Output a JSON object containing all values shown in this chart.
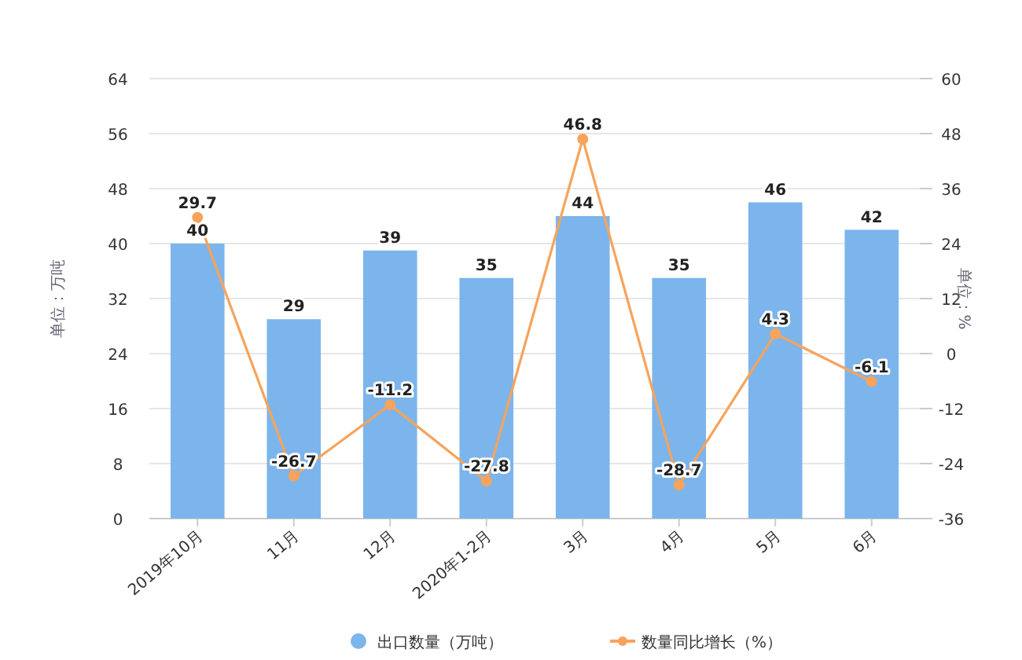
{
  "chart_data": {
    "type": "bar",
    "categories": [
      "2019年10月",
      "11月",
      "12月",
      "2020年1-2月",
      "3月",
      "4月",
      "5月",
      "6月"
    ],
    "series": [
      {
        "name": "出口数量（万吨）",
        "color": "#7cb5ec",
        "values": [
          40,
          29,
          39,
          35,
          44,
          35,
          46,
          42
        ]
      },
      {
        "name": "数量同比增长（%）",
        "type": "line",
        "axis": "y2",
        "color": "#f7a35c",
        "values": [
          29.7,
          -26.7,
          -11.2,
          -27.8,
          46.8,
          -28.7,
          4.3,
          -6.1
        ]
      }
    ],
    "ylabel": "单位：万吨",
    "y2label": "单位：%",
    "ylim": [
      0,
      64
    ],
    "yticks": [
      0,
      8,
      16,
      24,
      32,
      40,
      48,
      56,
      64
    ],
    "y2lim": [
      -36,
      60
    ],
    "y2ticks": [
      -36,
      -24,
      -12,
      0,
      12,
      24,
      36,
      48,
      60
    ],
    "grid": "y",
    "legend": "bottom",
    "data_labels": true,
    "marker": "circle",
    "line_style": "solid"
  }
}
